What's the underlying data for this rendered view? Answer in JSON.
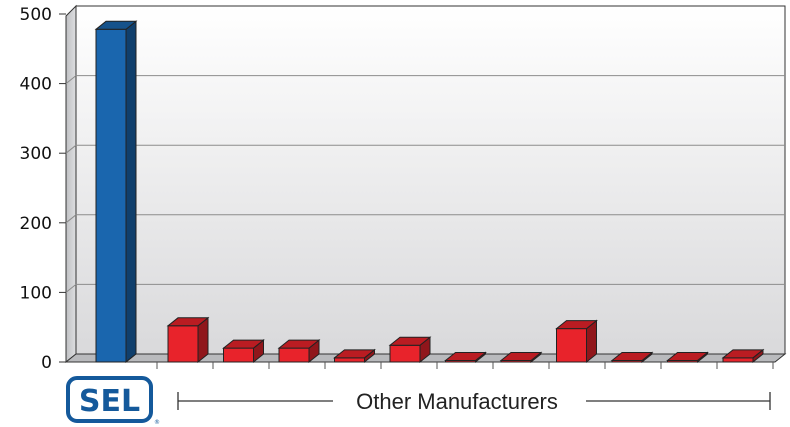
{
  "chart_data": {
    "type": "bar",
    "style": "3d",
    "title": "",
    "xlabel": "",
    "ylabel": "",
    "ylim": [
      0,
      500
    ],
    "yticks": [
      0,
      100,
      200,
      300,
      400,
      500
    ],
    "grid": true,
    "categories": [
      "SEL",
      "",
      "",
      "",
      "",
      "",
      "",
      "",
      "",
      "",
      "",
      ""
    ],
    "values": [
      478,
      52,
      20,
      20,
      6,
      24,
      2,
      2,
      48,
      2,
      2,
      6
    ],
    "colors": {
      "highlight": "#1a66ae",
      "others": "#e8232b"
    },
    "group_label": "Other Manufacturers"
  },
  "logo": {
    "text": "SEL",
    "mark": "®",
    "color": "#14599b"
  }
}
